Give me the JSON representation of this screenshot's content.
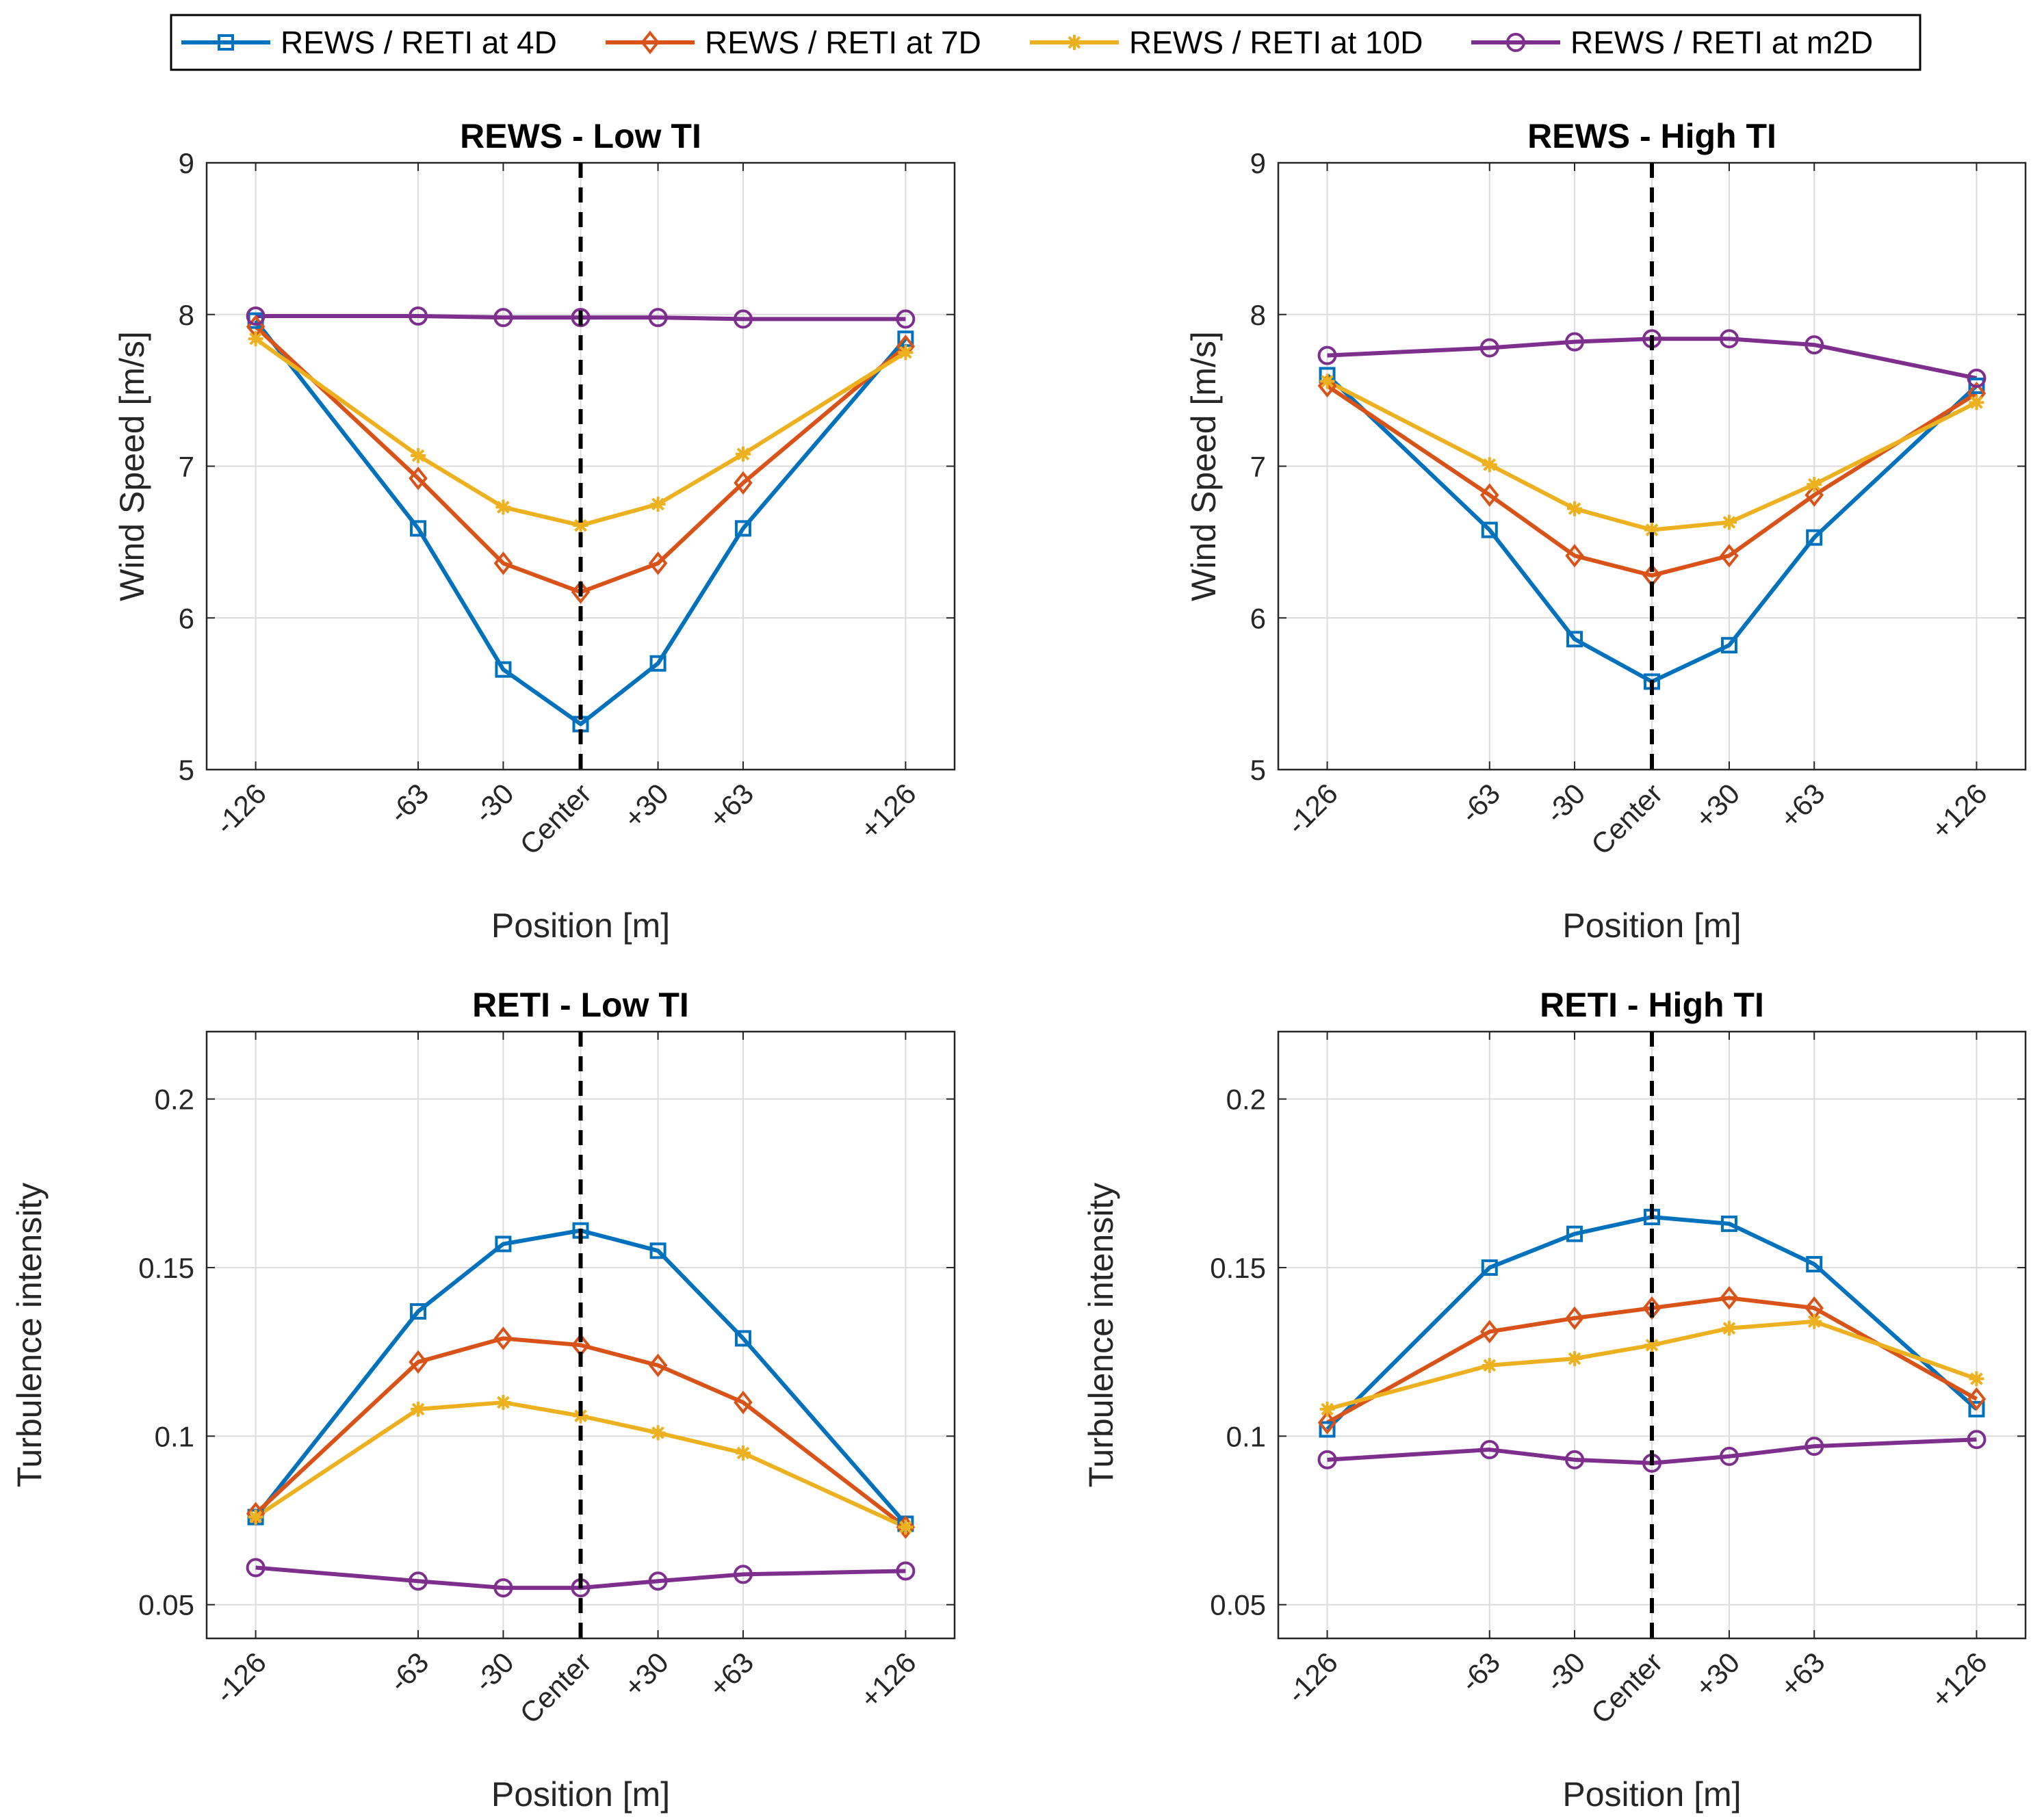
{
  "legend": {
    "entries": [
      {
        "label": "REWS / RETI at 4D",
        "marker": "square",
        "color": "#0072BD"
      },
      {
        "label": "REWS / RETI at 7D",
        "marker": "diamond",
        "color": "#D95319"
      },
      {
        "label": "REWS / RETI at 10D",
        "marker": "asterisk",
        "color": "#EDB120"
      },
      {
        "label": "REWS / RETI at m2D",
        "marker": "circle",
        "color": "#7E2F8E"
      }
    ]
  },
  "chart_data": [
    {
      "type": "line",
      "title": "REWS - Low TI",
      "xlabel": "Position [m]",
      "ylabel": "Wind Speed [m/s]",
      "x": [
        -126,
        -63,
        -30,
        0,
        30,
        63,
        126
      ],
      "x_tick_labels": [
        "-126",
        "-63",
        "-30",
        "Center",
        "+30",
        "+63",
        "+126"
      ],
      "xlim": [
        -145,
        145
      ],
      "ylim": [
        5,
        9
      ],
      "y_ticks": [
        5,
        6,
        7,
        8,
        9
      ],
      "y_tick_labels": [
        "5",
        "6",
        "7",
        "8",
        "9"
      ],
      "grid": true,
      "center_line_x": 0,
      "series": [
        {
          "name": "REWS / RETI at 4D",
          "values": [
            7.96,
            6.59,
            5.66,
            5.3,
            5.7,
            6.59,
            7.84
          ]
        },
        {
          "name": "REWS / RETI at 7D",
          "values": [
            7.92,
            6.92,
            6.36,
            6.17,
            6.36,
            6.89,
            7.79
          ]
        },
        {
          "name": "REWS / RETI at 10D",
          "values": [
            7.84,
            7.07,
            6.73,
            6.61,
            6.75,
            7.08,
            7.75
          ]
        },
        {
          "name": "REWS / RETI at m2D",
          "values": [
            7.99,
            7.99,
            7.98,
            7.98,
            7.98,
            7.97,
            7.97
          ]
        }
      ]
    },
    {
      "type": "line",
      "title": "REWS - High TI",
      "xlabel": "Position [m]",
      "ylabel": "Wind Speed [m/s]",
      "x": [
        -126,
        -63,
        -30,
        0,
        30,
        63,
        126
      ],
      "x_tick_labels": [
        "-126",
        "-63",
        "-30",
        "Center",
        "+30",
        "+63",
        "+126"
      ],
      "xlim": [
        -145,
        145
      ],
      "ylim": [
        5,
        9
      ],
      "y_ticks": [
        5,
        6,
        7,
        8,
        9
      ],
      "y_tick_labels": [
        "5",
        "6",
        "7",
        "8",
        "9"
      ],
      "grid": true,
      "center_line_x": 0,
      "series": [
        {
          "name": "REWS / RETI at 4D",
          "values": [
            7.6,
            6.58,
            5.86,
            5.58,
            5.82,
            6.53,
            7.53
          ]
        },
        {
          "name": "REWS / RETI at 7D",
          "values": [
            7.53,
            6.81,
            6.41,
            6.28,
            6.41,
            6.81,
            7.48
          ]
        },
        {
          "name": "REWS / RETI at 10D",
          "values": [
            7.56,
            7.01,
            6.72,
            6.58,
            6.63,
            6.88,
            7.42
          ]
        },
        {
          "name": "REWS / RETI at m2D",
          "values": [
            7.73,
            7.78,
            7.82,
            7.84,
            7.84,
            7.8,
            7.58
          ]
        }
      ]
    },
    {
      "type": "line",
      "title": "RETI - Low TI",
      "xlabel": "Position [m]",
      "ylabel": "Turbulence intensity",
      "x": [
        -126,
        -63,
        -30,
        0,
        30,
        63,
        126
      ],
      "x_tick_labels": [
        "-126",
        "-63",
        "-30",
        "Center",
        "+30",
        "+63",
        "+126"
      ],
      "xlim": [
        -145,
        145
      ],
      "ylim": [
        0.04,
        0.22
      ],
      "y_ticks": [
        0.05,
        0.1,
        0.15,
        0.2
      ],
      "y_tick_labels": [
        "0.05",
        "0.1",
        "0.15",
        "0.2"
      ],
      "grid": true,
      "center_line_x": 0,
      "series": [
        {
          "name": "REWS / RETI at 4D",
          "values": [
            0.076,
            0.137,
            0.157,
            0.161,
            0.155,
            0.129,
            0.074
          ]
        },
        {
          "name": "REWS / RETI at 7D",
          "values": [
            0.077,
            0.122,
            0.129,
            0.127,
            0.121,
            0.11,
            0.073
          ]
        },
        {
          "name": "REWS / RETI at 10D",
          "values": [
            0.076,
            0.108,
            0.11,
            0.106,
            0.101,
            0.095,
            0.073
          ]
        },
        {
          "name": "REWS / RETI at m2D",
          "values": [
            0.061,
            0.057,
            0.055,
            0.055,
            0.057,
            0.059,
            0.06
          ]
        }
      ]
    },
    {
      "type": "line",
      "title": "RETI - High TI",
      "xlabel": "Position [m]",
      "ylabel": "Turbulence intensity",
      "x": [
        -126,
        -63,
        -30,
        0,
        30,
        63,
        126
      ],
      "x_tick_labels": [
        "-126",
        "-63",
        "-30",
        "Center",
        "+30",
        "+63",
        "+126"
      ],
      "xlim": [
        -145,
        145
      ],
      "ylim": [
        0.04,
        0.22
      ],
      "y_ticks": [
        0.05,
        0.1,
        0.15,
        0.2
      ],
      "y_tick_labels": [
        "0.05",
        "0.1",
        "0.15",
        "0.2"
      ],
      "grid": true,
      "center_line_x": 0,
      "series": [
        {
          "name": "REWS / RETI at 4D",
          "values": [
            0.102,
            0.15,
            0.16,
            0.165,
            0.163,
            0.151,
            0.108
          ]
        },
        {
          "name": "REWS / RETI at 7D",
          "values": [
            0.104,
            0.131,
            0.135,
            0.138,
            0.141,
            0.138,
            0.111
          ]
        },
        {
          "name": "REWS / RETI at 10D",
          "values": [
            0.108,
            0.121,
            0.123,
            0.127,
            0.132,
            0.134,
            0.117
          ]
        },
        {
          "name": "REWS / RETI at m2D",
          "values": [
            0.093,
            0.096,
            0.093,
            0.092,
            0.094,
            0.097,
            0.099
          ]
        }
      ]
    }
  ]
}
